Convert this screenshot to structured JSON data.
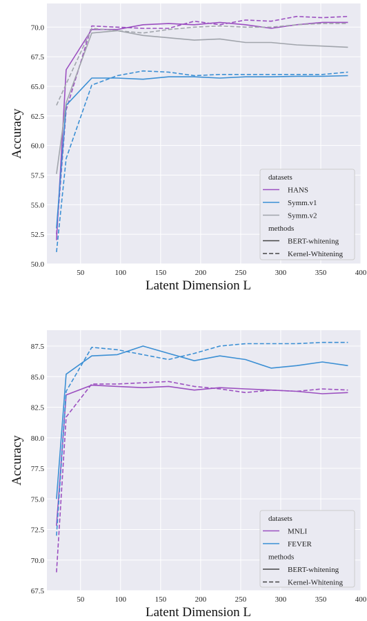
{
  "chart_data": [
    {
      "type": "line",
      "xlabel": "Latent  Dimension L",
      "ylabel": "Accuracy",
      "xlim": [
        8,
        400
      ],
      "ylim": [
        50.0,
        72.0
      ],
      "xticks": [
        "50",
        "100",
        "150",
        "200",
        "250",
        "300",
        "350",
        "400"
      ],
      "yticks": [
        "50.0",
        "52.5",
        "55.0",
        "57.5",
        "60.0",
        "62.5",
        "65.0",
        "67.5",
        "70.0"
      ],
      "grid": true,
      "legend_position": "lower-right",
      "legend": {
        "title1": "datasets",
        "datasets": [
          "HANS",
          "Symm.v1",
          "Symm.v2"
        ],
        "title2": "methods",
        "methods": [
          "BERT-whitening",
          "Kernel-Whitening"
        ]
      },
      "colors": {
        "HANS": "#9b4fc0",
        "Symm.v1": "#3b8fd4",
        "Symm.v2": "#a0a4ab"
      },
      "x": [
        20,
        32,
        64,
        96,
        128,
        160,
        192,
        224,
        256,
        288,
        320,
        352,
        384
      ],
      "series": [
        {
          "name": "HANS",
          "method": "BERT-whitening",
          "values": [
            52.0,
            66.4,
            69.8,
            69.8,
            70.2,
            70.3,
            70.2,
            70.4,
            70.2,
            69.9,
            70.2,
            70.4,
            70.4
          ]
        },
        {
          "name": "HANS",
          "method": "Kernel-Whitening",
          "values": [
            52.5,
            63.0,
            70.1,
            70.0,
            69.9,
            69.9,
            70.5,
            70.2,
            70.6,
            70.5,
            70.9,
            70.8,
            70.9
          ]
        },
        {
          "name": "Symm.v1",
          "method": "BERT-whitening",
          "values": [
            53.0,
            63.4,
            65.7,
            65.7,
            65.6,
            65.8,
            65.8,
            65.7,
            65.8,
            65.8,
            65.85,
            65.85,
            65.9
          ]
        },
        {
          "name": "Symm.v1",
          "method": "Kernel-Whitening",
          "values": [
            51.0,
            58.9,
            65.1,
            65.9,
            66.3,
            66.2,
            65.9,
            66.0,
            66.0,
            66.0,
            66.0,
            66.0,
            66.2
          ]
        },
        {
          "name": "Symm.v2",
          "method": "BERT-whitening",
          "values": [
            57.6,
            63.6,
            69.5,
            69.7,
            69.3,
            69.1,
            68.9,
            69.0,
            68.7,
            68.7,
            68.5,
            68.4,
            68.3
          ]
        },
        {
          "name": "Symm.v2",
          "method": "Kernel-Whitening",
          "values": [
            63.4,
            65.2,
            69.9,
            69.7,
            69.5,
            69.8,
            70.0,
            70.1,
            70.0,
            70.0,
            70.2,
            70.3,
            70.3
          ]
        }
      ]
    },
    {
      "type": "line",
      "xlabel": "Latent  Dimension L",
      "ylabel": "Accuracy",
      "xlim": [
        8,
        400
      ],
      "ylim": [
        67.5,
        88.8
      ],
      "xticks": [
        "50",
        "100",
        "150",
        "200",
        "250",
        "300",
        "350",
        "400"
      ],
      "yticks": [
        "67.5",
        "70.0",
        "72.5",
        "75.0",
        "77.5",
        "80.0",
        "82.5",
        "85.0",
        "87.5"
      ],
      "grid": true,
      "legend_position": "lower-right",
      "legend": {
        "title1": "datasets",
        "datasets": [
          "MNLI",
          "FEVER"
        ],
        "title2": "methods",
        "methods": [
          "BERT-whitening",
          "Kernel-Whitening"
        ]
      },
      "colors": {
        "MNLI": "#9b4fc0",
        "FEVER": "#3b8fd4"
      },
      "x": [
        20,
        32,
        64,
        96,
        128,
        160,
        192,
        224,
        256,
        288,
        320,
        352,
        384
      ],
      "series": [
        {
          "name": "MNLI",
          "method": "BERT-whitening",
          "values": [
            72.8,
            83.5,
            84.3,
            84.2,
            84.1,
            84.2,
            83.9,
            84.1,
            84.0,
            83.9,
            83.8,
            83.6,
            83.7
          ]
        },
        {
          "name": "MNLI",
          "method": "Kernel-Whitening",
          "values": [
            69.0,
            81.7,
            84.4,
            84.4,
            84.5,
            84.6,
            84.2,
            84.0,
            83.7,
            83.9,
            83.8,
            84.0,
            83.9
          ]
        },
        {
          "name": "FEVER",
          "method": "BERT-whitening",
          "values": [
            75.0,
            85.2,
            86.7,
            86.8,
            87.5,
            86.9,
            86.3,
            86.7,
            86.4,
            85.7,
            85.9,
            86.2,
            85.9
          ]
        },
        {
          "name": "FEVER",
          "method": "Kernel-Whitening",
          "values": [
            72.0,
            83.8,
            87.4,
            87.2,
            86.8,
            86.4,
            86.9,
            87.5,
            87.7,
            87.7,
            87.7,
            87.8,
            87.8
          ]
        }
      ]
    }
  ]
}
